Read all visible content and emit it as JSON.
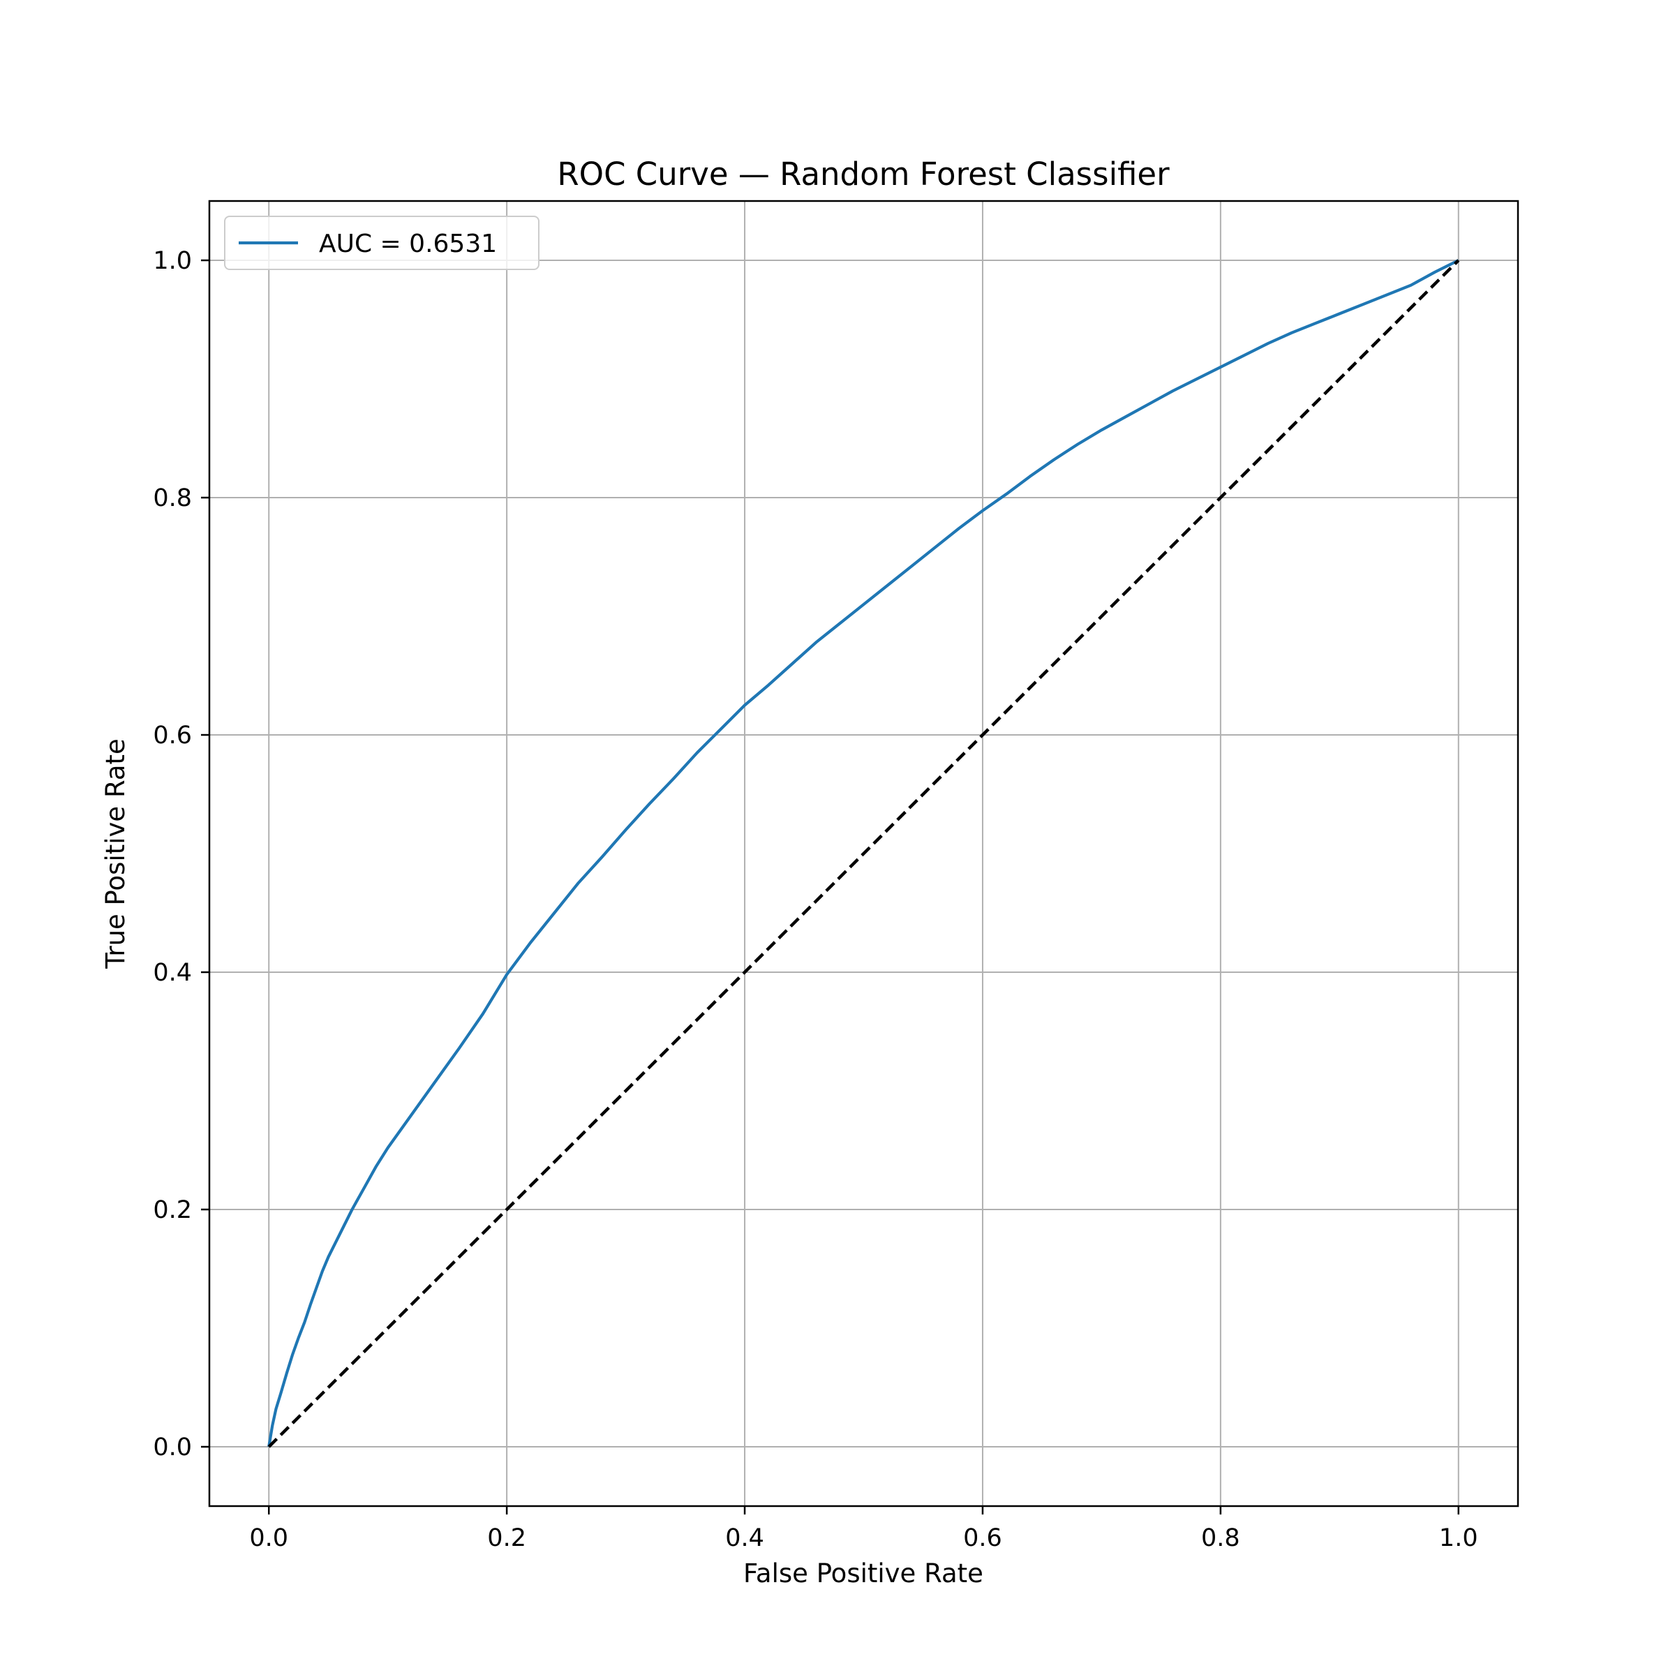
{
  "chart_data": {
    "type": "line",
    "title": "ROC Curve — Random Forest Classifier",
    "xlabel": "False Positive Rate",
    "ylabel": "True Positive Rate",
    "xlim": [
      -0.05,
      1.05
    ],
    "ylim": [
      -0.05,
      1.05
    ],
    "xticks": [
      0.0,
      0.2,
      0.4,
      0.6,
      0.8,
      1.0
    ],
    "yticks": [
      0.0,
      0.2,
      0.4,
      0.6,
      0.8,
      1.0
    ],
    "xtick_labels": [
      "0.0",
      "0.2",
      "0.4",
      "0.6",
      "0.8",
      "1.0"
    ],
    "ytick_labels": [
      "0.0",
      "0.2",
      "0.4",
      "0.6",
      "0.8",
      "1.0"
    ],
    "grid": true,
    "legend_position": "upper-left",
    "series": [
      {
        "name": "AUC = 0.6531",
        "color": "#1f77b4",
        "style": "solid",
        "x": [
          0.0,
          0.003,
          0.006,
          0.01,
          0.015,
          0.02,
          0.025,
          0.03,
          0.035,
          0.04,
          0.045,
          0.05,
          0.06,
          0.07,
          0.08,
          0.09,
          0.1,
          0.12,
          0.14,
          0.16,
          0.18,
          0.2,
          0.22,
          0.24,
          0.26,
          0.28,
          0.3,
          0.32,
          0.34,
          0.36,
          0.38,
          0.4,
          0.42,
          0.44,
          0.46,
          0.48,
          0.5,
          0.52,
          0.54,
          0.56,
          0.58,
          0.6,
          0.62,
          0.64,
          0.66,
          0.68,
          0.7,
          0.72,
          0.74,
          0.76,
          0.78,
          0.8,
          0.82,
          0.84,
          0.86,
          0.88,
          0.9,
          0.92,
          0.94,
          0.96,
          0.98,
          1.0
        ],
        "y": [
          0.0,
          0.018,
          0.032,
          0.045,
          0.062,
          0.078,
          0.092,
          0.105,
          0.12,
          0.134,
          0.148,
          0.16,
          0.18,
          0.2,
          0.218,
          0.236,
          0.252,
          0.28,
          0.308,
          0.336,
          0.365,
          0.398,
          0.425,
          0.45,
          0.475,
          0.497,
          0.52,
          0.542,
          0.563,
          0.585,
          0.605,
          0.625,
          0.642,
          0.66,
          0.678,
          0.694,
          0.71,
          0.726,
          0.742,
          0.758,
          0.774,
          0.789,
          0.803,
          0.818,
          0.832,
          0.845,
          0.857,
          0.868,
          0.879,
          0.89,
          0.9,
          0.91,
          0.92,
          0.93,
          0.939,
          0.947,
          0.955,
          0.963,
          0.971,
          0.979,
          0.99,
          1.0
        ]
      },
      {
        "name": "",
        "color": "#000000",
        "style": "dashed",
        "x": [
          0.0,
          1.0
        ],
        "y": [
          0.0,
          1.0
        ]
      }
    ]
  }
}
